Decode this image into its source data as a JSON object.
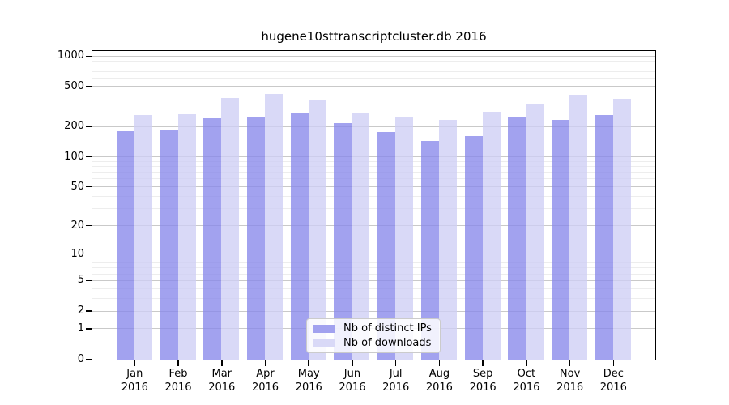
{
  "title": "hugene10sttranscriptcluster.db 2016",
  "chart_data": {
    "type": "bar",
    "title": "hugene10sttranscriptcluster.db 2016",
    "categories": [
      "Jan",
      "Feb",
      "Mar",
      "Apr",
      "May",
      "Jun",
      "Jul",
      "Aug",
      "Sep",
      "Oct",
      "Nov",
      "Dec"
    ],
    "year_label": "2016",
    "series": [
      {
        "name": "Nb of distinct IPs",
        "color": "#a2a2ef",
        "values": [
          183,
          184,
          245,
          250,
          274,
          220,
          177,
          146,
          161,
          248,
          234,
          264
        ]
      },
      {
        "name": "Nb of downloads",
        "color": "#d9d9f7",
        "values": [
          264,
          266,
          391,
          424,
          367,
          278,
          255,
          237,
          285,
          335,
          421,
          383
        ]
      }
    ],
    "yscale": "log1p",
    "ylim": [
      0,
      1000
    ],
    "yticks": [
      0,
      1,
      2,
      5,
      10,
      20,
      50,
      100,
      200,
      500,
      1000
    ],
    "minor_gridlines": [
      3,
      4,
      6,
      7,
      8,
      9,
      30,
      40,
      60,
      70,
      80,
      90,
      300,
      400,
      600,
      700,
      800,
      900
    ],
    "grid": true,
    "legend_position": "bottom-center",
    "xlabel": "",
    "ylabel": ""
  },
  "colors": {
    "bar_distinct_ips": "#a2a2ef",
    "bar_downloads": "#d9d9f7",
    "major_gridline": "#c9c9c9",
    "minor_gridline": "#ededed",
    "axis": "#000000"
  }
}
